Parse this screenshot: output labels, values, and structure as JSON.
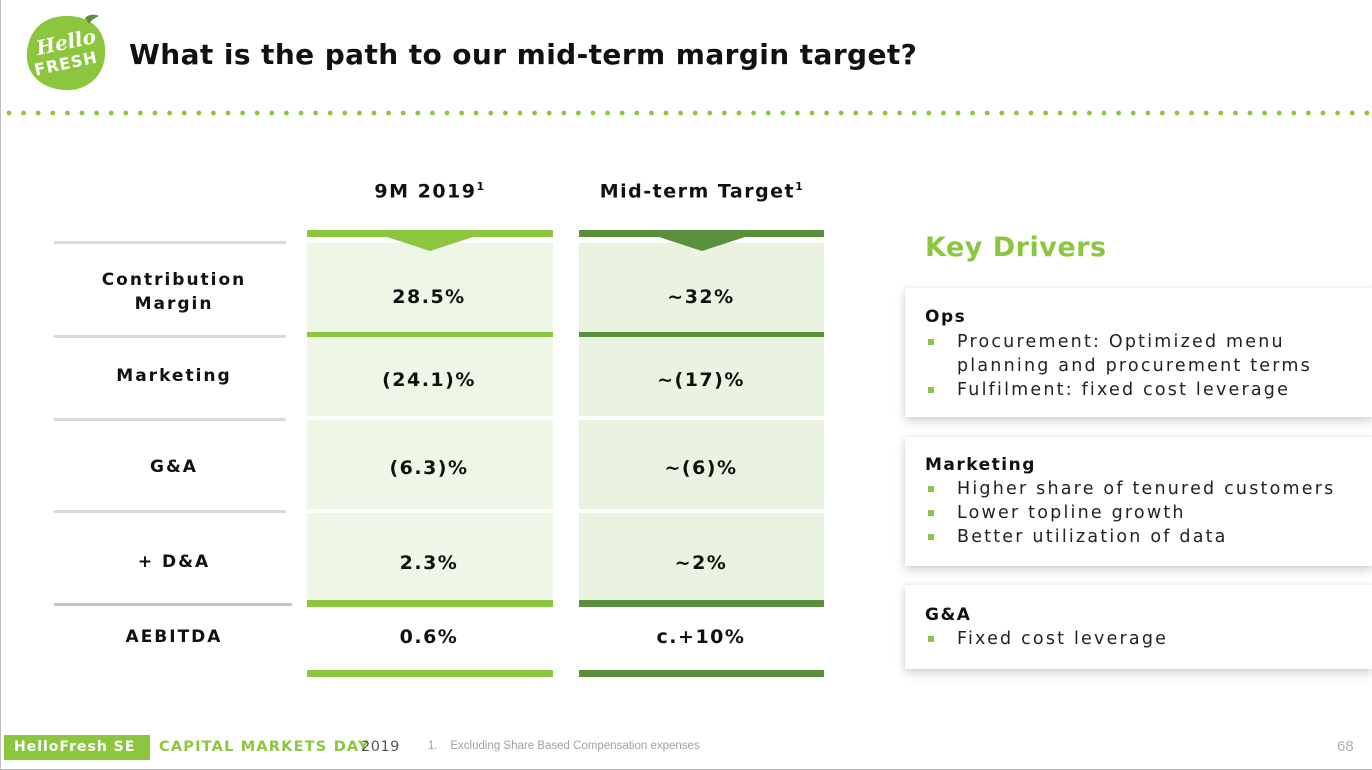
{
  "brand": {
    "logo_line1": "Hello",
    "logo_line2": "FRESH",
    "green": "#8cc63f",
    "dark_green": "#5a8f3c"
  },
  "title": "What is the path to our mid-term margin target?",
  "table": {
    "col1": {
      "label": "9M 2019",
      "sup": "1"
    },
    "col2": {
      "label": "Mid-term Target",
      "sup": "1"
    },
    "rows": [
      {
        "label_lines": [
          "Contribution",
          "Margin"
        ],
        "v1": "28.5%",
        "v2": "~32%"
      },
      {
        "label": "Marketing",
        "v1": "(24.1)%",
        "v2": "~(17)%"
      },
      {
        "label": "G&A",
        "v1": "(6.3)%",
        "v2": "~(6)%"
      },
      {
        "label": "+ D&A",
        "v1": "2.3%",
        "v2": "~2%"
      },
      {
        "label": "AEBITDA",
        "v1": "0.6%",
        "v2": "c.+10%"
      }
    ]
  },
  "key_drivers": {
    "title": "Key Drivers",
    "cards": [
      {
        "heading": "Ops",
        "items": [
          "Procurement: Optimized menu planning and procurement terms",
          "Fulfilment: fixed cost leverage"
        ]
      },
      {
        "heading": "Marketing",
        "items": [
          "Higher share of tenured customers",
          "Lower topline growth",
          "Better utilization of data"
        ]
      },
      {
        "heading": "G&A",
        "items": [
          "Fixed cost leverage"
        ]
      }
    ]
  },
  "footer": {
    "brand": "HelloFresh SE",
    "event": "CAPITAL MARKETS DAY",
    "year": "2019",
    "note": "1.    Excluding Share Based Compensation expenses",
    "page": "68"
  }
}
